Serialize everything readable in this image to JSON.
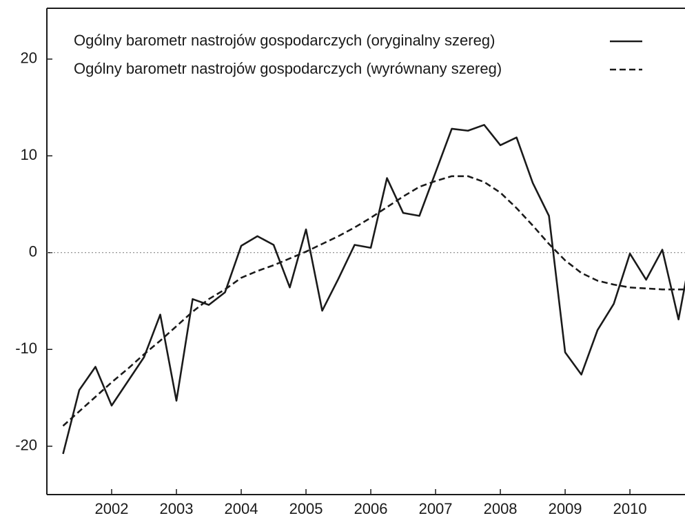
{
  "chart_data": {
    "type": "line",
    "x": [
      2001.25,
      2001.5,
      2001.75,
      2002.0,
      2002.25,
      2002.5,
      2002.75,
      2003.0,
      2003.25,
      2003.5,
      2003.75,
      2004.0,
      2004.25,
      2004.5,
      2004.75,
      2005.0,
      2005.25,
      2005.5,
      2005.75,
      2006.0,
      2006.25,
      2006.5,
      2006.75,
      2007.0,
      2007.25,
      2007.5,
      2007.75,
      2008.0,
      2008.25,
      2008.5,
      2008.75,
      2009.0,
      2009.25,
      2009.5,
      2009.75,
      2010.0,
      2010.25,
      2010.5,
      2010.75,
      2011.0
    ],
    "series": [
      {
        "name": "Ogólny barometr nastrojów gospodarczych (oryginalny szereg)",
        "color": "#1a1a1a",
        "style": "solid",
        "values": [
          -20.8,
          -14.2,
          -11.8,
          -15.8,
          -13.3,
          -10.8,
          -6.4,
          -15.3,
          -4.8,
          -5.4,
          -4.1,
          0.7,
          1.7,
          0.8,
          -3.6,
          2.4,
          -6.0,
          -2.7,
          0.8,
          0.5,
          7.7,
          4.1,
          3.8,
          8.3,
          12.8,
          12.6,
          13.2,
          11.1,
          11.9,
          7.2,
          3.8,
          -10.3,
          -12.6,
          -8.0,
          -5.3,
          -0.1,
          -2.8,
          0.3,
          -6.9,
          2.0
        ]
      },
      {
        "name": "Ogólny barometr nastrojów gospodarczych (wyrównany szereg)",
        "color": "#1a1a1a",
        "style": "dashed",
        "values": [
          -17.9,
          -16.4,
          -14.9,
          -13.4,
          -12.0,
          -10.5,
          -9.1,
          -7.6,
          -6.1,
          -4.8,
          -3.8,
          -2.6,
          -1.9,
          -1.3,
          -0.6,
          0.1,
          0.9,
          1.7,
          2.6,
          3.6,
          4.7,
          5.8,
          6.8,
          7.4,
          7.9,
          7.9,
          7.3,
          6.2,
          4.6,
          2.8,
          0.9,
          -0.8,
          -2.1,
          -2.9,
          -3.3,
          -3.6,
          -3.7,
          -3.8,
          -3.8,
          -3.8
        ]
      }
    ],
    "xlim": [
      2001,
      2010.85
    ],
    "xticks": [
      2002,
      2003,
      2004,
      2005,
      2006,
      2007,
      2008,
      2009,
      2010
    ],
    "ylim": [
      -25,
      25.25
    ],
    "yticks": [
      -20,
      -10,
      0,
      10,
      20
    ],
    "hline": 0,
    "legend": "upper-left"
  }
}
